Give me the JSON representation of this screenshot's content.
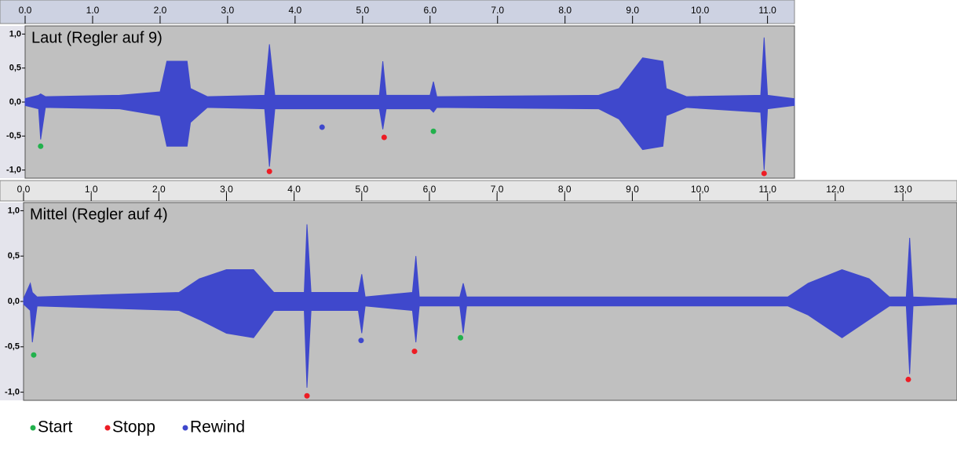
{
  "chart_data": [
    {
      "type": "waveform",
      "title": "Laut (Regler auf 9)",
      "xlim": [
        0,
        11.4
      ],
      "ylim": [
        -1.12,
        1.12
      ],
      "xticks": [
        {
          "value": 0,
          "label": "0.0"
        },
        {
          "value": 1,
          "label": "1.0"
        },
        {
          "value": 2,
          "label": "2.0"
        },
        {
          "value": 3,
          "label": "3.0"
        },
        {
          "value": 4,
          "label": "4.0"
        },
        {
          "value": 5,
          "label": "5.0"
        },
        {
          "value": 6,
          "label": "6.0"
        },
        {
          "value": 7,
          "label": "7.0"
        },
        {
          "value": 8,
          "label": "8.0"
        },
        {
          "value": 9,
          "label": "9.0"
        },
        {
          "value": 10,
          "label": "10.0"
        },
        {
          "value": 11,
          "label": "11.0"
        }
      ],
      "yticks": [
        {
          "value": 1,
          "label": "1,0"
        },
        {
          "value": 0.5,
          "label": "0,5"
        },
        {
          "value": 0,
          "label": "0,0"
        },
        {
          "value": -0.5,
          "label": "-0,5"
        },
        {
          "value": -1,
          "label": "-1,0"
        }
      ],
      "envelope": {
        "color": "#3f48cc",
        "x": [
          0,
          0.2,
          0.23,
          0.3,
          1.4,
          2.0,
          2.1,
          2.4,
          2.45,
          2.7,
          3.55,
          3.62,
          3.7,
          5.25,
          5.3,
          5.35,
          6.0,
          6.05,
          6.1,
          8.5,
          8.8,
          9.15,
          9.45,
          9.5,
          9.8,
          10.9,
          10.95,
          11.0,
          11.4
        ],
        "upper": [
          0.05,
          0.1,
          0.12,
          0.08,
          0.1,
          0.15,
          0.6,
          0.6,
          0.2,
          0.08,
          0.1,
          0.85,
          0.1,
          0.1,
          0.6,
          0.1,
          0.1,
          0.3,
          0.08,
          0.1,
          0.2,
          0.65,
          0.6,
          0.2,
          0.08,
          0.1,
          0.95,
          0.1,
          0.05
        ],
        "lower": [
          -0.05,
          -0.1,
          -0.55,
          -0.08,
          -0.1,
          -0.2,
          -0.65,
          -0.65,
          -0.3,
          -0.08,
          -0.1,
          -0.95,
          -0.1,
          -0.1,
          -0.4,
          -0.1,
          -0.1,
          -0.15,
          -0.08,
          -0.1,
          -0.25,
          -0.7,
          -0.65,
          -0.2,
          -0.08,
          -0.15,
          -1.0,
          -0.1,
          -0.05
        ]
      },
      "series": [
        {
          "name": "Start",
          "color": "#22b14c",
          "x": [
            0.23,
            6.05
          ],
          "values": [
            -0.65,
            -0.43
          ]
        },
        {
          "name": "Stopp",
          "color": "#ed1c24",
          "x": [
            3.62,
            5.32,
            10.95
          ],
          "values": [
            -1.02,
            -0.52,
            -1.05
          ]
        },
        {
          "name": "Rewind",
          "color": "#3f48cc",
          "x": [
            4.4
          ],
          "values": [
            -0.37
          ]
        }
      ]
    },
    {
      "type": "waveform",
      "title": "Mittel (Regler auf 4)",
      "xlim": [
        0,
        13.8
      ],
      "ylim": [
        -1.09,
        1.09
      ],
      "xticks": [
        {
          "value": 0,
          "label": "0,0"
        },
        {
          "value": 1,
          "label": "1,0"
        },
        {
          "value": 2,
          "label": "2,0"
        },
        {
          "value": 3,
          "label": "3,0"
        },
        {
          "value": 4,
          "label": "4,0"
        },
        {
          "value": 5,
          "label": "5,0"
        },
        {
          "value": 6,
          "label": "6,0"
        },
        {
          "value": 7,
          "label": "7,0"
        },
        {
          "value": 8,
          "label": "8,0"
        },
        {
          "value": 9,
          "label": "9,0"
        },
        {
          "value": 10,
          "label": "10,0"
        },
        {
          "value": 11,
          "label": "11,0"
        },
        {
          "value": 12,
          "label": "12,0"
        },
        {
          "value": 13,
          "label": "13,0"
        }
      ],
      "yticks": [
        {
          "value": 1,
          "label": "1,0"
        },
        {
          "value": 0.5,
          "label": "0,5"
        },
        {
          "value": 0,
          "label": "0,0"
        },
        {
          "value": -0.5,
          "label": "-0,5"
        },
        {
          "value": -1,
          "label": "-1,0"
        }
      ],
      "envelope": {
        "color": "#3f48cc",
        "x": [
          0,
          0.1,
          0.13,
          0.2,
          2.3,
          2.6,
          3.0,
          3.4,
          3.7,
          4.15,
          4.19,
          4.25,
          4.95,
          5.0,
          5.05,
          5.75,
          5.8,
          5.85,
          6.45,
          6.5,
          6.55,
          11.3,
          11.6,
          12.1,
          12.5,
          12.8,
          13.05,
          13.1,
          13.15,
          13.8
        ],
        "upper": [
          0.03,
          0.2,
          0.1,
          0.05,
          0.1,
          0.25,
          0.35,
          0.35,
          0.1,
          0.1,
          0.85,
          0.1,
          0.1,
          0.3,
          0.05,
          0.1,
          0.5,
          0.05,
          0.05,
          0.2,
          0.05,
          0.05,
          0.2,
          0.35,
          0.25,
          0.05,
          0.05,
          0.7,
          0.05,
          0.03
        ],
        "lower": [
          -0.03,
          -0.1,
          -0.45,
          -0.05,
          -0.1,
          -0.2,
          -0.35,
          -0.4,
          -0.1,
          -0.1,
          -0.95,
          -0.1,
          -0.1,
          -0.35,
          -0.05,
          -0.1,
          -0.45,
          -0.05,
          -0.05,
          -0.35,
          -0.05,
          -0.05,
          -0.15,
          -0.4,
          -0.2,
          -0.05,
          -0.05,
          -0.8,
          -0.05,
          -0.03
        ]
      },
      "series": [
        {
          "name": "Start",
          "color": "#22b14c",
          "x": [
            0.15,
            6.46
          ],
          "values": [
            -0.59,
            -0.4
          ]
        },
        {
          "name": "Stopp",
          "color": "#ed1c24",
          "x": [
            4.19,
            5.78,
            13.08
          ],
          "values": [
            -1.04,
            -0.55,
            -0.86
          ]
        },
        {
          "name": "Rewind",
          "color": "#3f48cc",
          "x": [
            4.99
          ],
          "values": [
            -0.43
          ]
        }
      ]
    }
  ]
}
